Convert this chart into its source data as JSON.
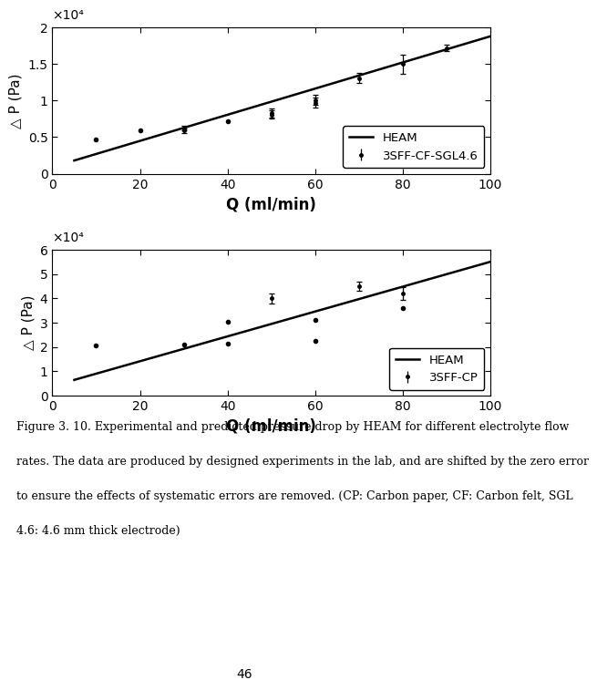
{
  "plot1": {
    "line_x": [
      5,
      100
    ],
    "line_y": [
      1800,
      18800
    ],
    "data_x": [
      10,
      20,
      30,
      30,
      40,
      50,
      50,
      60,
      60,
      70,
      80,
      90
    ],
    "data_y": [
      4700,
      5900,
      5900,
      6200,
      7200,
      8300,
      8100,
      9700,
      10100,
      13100,
      15000,
      17200
    ],
    "data_yerr": [
      0,
      0,
      300,
      300,
      0,
      600,
      600,
      700,
      700,
      700,
      1300,
      400
    ],
    "ylabel": "△ P (Pa)",
    "xlabel": "Q (ml/min)",
    "xlim": [
      0,
      100
    ],
    "ylim": [
      0,
      20000
    ],
    "yticks": [
      0,
      5000,
      10000,
      15000,
      20000
    ],
    "ytick_labels": [
      "0",
      "0.5",
      "1",
      "1.5",
      "2"
    ],
    "xticks": [
      0,
      20,
      40,
      60,
      80,
      100
    ],
    "legend_line": "HEAM",
    "legend_point": "3SFF-CF-SGL4.6",
    "scale_label": "×10⁴"
  },
  "plot2": {
    "line_x": [
      5,
      100
    ],
    "line_y": [
      6500,
      55000
    ],
    "data_x": [
      10,
      30,
      40,
      40,
      50,
      60,
      60,
      70,
      80,
      80
    ],
    "data_y": [
      20500,
      21000,
      30500,
      21500,
      40000,
      31000,
      22500,
      45000,
      42000,
      36000
    ],
    "data_yerr": [
      0,
      0,
      0,
      0,
      2000,
      0,
      0,
      2000,
      2500,
      0
    ],
    "ylabel": "△ P (Pa)",
    "xlabel": "Q (ml/min)",
    "xlim": [
      0,
      100
    ],
    "ylim": [
      0,
      60000
    ],
    "yticks": [
      0,
      10000,
      20000,
      30000,
      40000,
      50000,
      60000
    ],
    "ytick_labels": [
      "0",
      "1",
      "2",
      "3",
      "4",
      "5",
      "6"
    ],
    "xticks": [
      0,
      20,
      40,
      60,
      80,
      100
    ],
    "legend_line": "HEAM",
    "legend_point": "3SFF-CP",
    "scale_label": "×10⁴"
  },
  "caption_lines": [
    "Figure 3. 10. Experimental and predicted pressure drop by HEAM for different electrolyte flow",
    "rates. The data are produced by designed experiments in the lab, and are shifted by the zero error",
    "to ensure the effects of systematic errors are removed. (CP: Carbon paper, CF: Carbon felt, SGL",
    "4.6: 4.6 mm thick electrode)"
  ],
  "page_number": "46",
  "background_color": "#ffffff",
  "line_color": "#000000",
  "data_color": "#000000"
}
